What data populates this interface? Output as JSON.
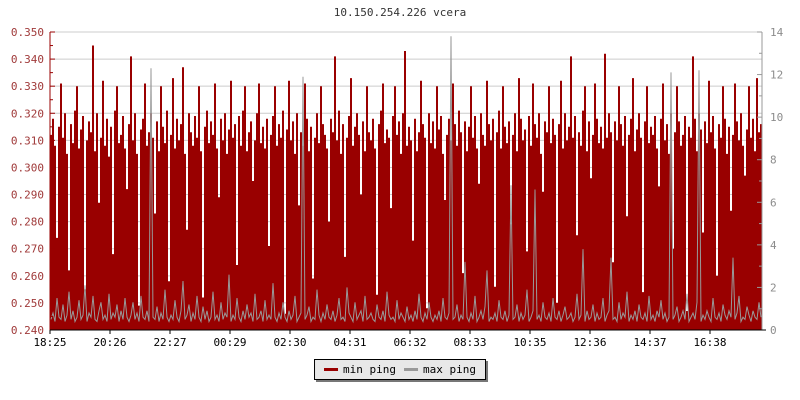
{
  "header": {
    "title": "10.150.254.226 vcera"
  },
  "colors": {
    "min_ping": "#990000",
    "max_ping": "#999999",
    "grid": "#cccccc",
    "left_axis": "#990000",
    "left_labels": "#a03a3a",
    "right_axis": "#999999",
    "right_labels": "#8c8c8c",
    "bottom_axis": "#000000",
    "x_labels": "#000000",
    "title": "#333333",
    "legend_bg": "#e8e8e8"
  },
  "legend": {
    "items": [
      "min ping",
      "max ping"
    ]
  },
  "chart_data": {
    "type": "line",
    "title": "10.150.254.226 vcera",
    "xlabel": "",
    "ylabel": "",
    "grid": true,
    "legend_position": "bottom-center",
    "x_tick_labels": [
      "18:25",
      "20:26",
      "22:27",
      "00:29",
      "02:30",
      "04:31",
      "06:32",
      "08:33",
      "10:35",
      "12:36",
      "14:37",
      "16:38"
    ],
    "left_axis": {
      "min": 0.24,
      "max": 0.35,
      "tick_step": 0.01,
      "minor_step": 0.005,
      "tick_labels": [
        "0.240",
        "0.250",
        "0.260",
        "0.270",
        "0.280",
        "0.290",
        "0.300",
        "0.310",
        "0.320",
        "0.330",
        "0.340",
        "0.350"
      ]
    },
    "right_axis": {
      "min": 0,
      "max": 14,
      "tick_step": 2,
      "minor_step": 1,
      "tick_labels": [
        "0",
        "2",
        "4",
        "6",
        "8",
        "10",
        "12",
        "14"
      ]
    },
    "series": [
      {
        "name": "min ping",
        "axis": "left",
        "style": "filled-bars",
        "color": "#990000",
        "values": [
          0.312,
          0.318,
          0.308,
          0.274,
          0.315,
          0.331,
          0.311,
          0.32,
          0.305,
          0.262,
          0.316,
          0.309,
          0.321,
          0.33,
          0.307,
          0.314,
          0.319,
          0.255,
          0.31,
          0.317,
          0.313,
          0.345,
          0.306,
          0.32,
          0.287,
          0.311,
          0.332,
          0.308,
          0.318,
          0.304,
          0.315,
          0.268,
          0.321,
          0.33,
          0.309,
          0.312,
          0.319,
          0.307,
          0.292,
          0.316,
          0.341,
          0.31,
          0.32,
          0.305,
          0.249,
          0.314,
          0.318,
          0.331,
          0.308,
          0.313,
          0.32,
          0.311,
          0.283,
          0.317,
          0.306,
          0.33,
          0.315,
          0.309,
          0.321,
          0.258,
          0.312,
          0.333,
          0.307,
          0.318,
          0.31,
          0.316,
          0.337,
          0.305,
          0.277,
          0.32,
          0.313,
          0.308,
          0.319,
          0.311,
          0.33,
          0.306,
          0.252,
          0.315,
          0.321,
          0.309,
          0.317,
          0.312,
          0.331,
          0.307,
          0.289,
          0.318,
          0.31,
          0.32,
          0.305,
          0.314,
          0.332,
          0.311,
          0.316,
          0.264,
          0.319,
          0.308,
          0.321,
          0.33,
          0.306,
          0.313,
          0.317,
          0.295,
          0.31,
          0.32,
          0.331,
          0.309,
          0.315,
          0.307,
          0.318,
          0.271,
          0.312,
          0.319,
          0.33,
          0.308,
          0.316,
          0.311,
          0.321,
          0.246,
          0.314,
          0.332,
          0.31,
          0.317,
          0.305,
          0.32,
          0.286,
          0.313,
          0.308,
          0.331,
          0.318,
          0.306,
          0.315,
          0.259,
          0.311,
          0.32,
          0.309,
          0.33,
          0.316,
          0.312,
          0.307,
          0.28,
          0.318,
          0.313,
          0.341,
          0.31,
          0.321,
          0.305,
          0.316,
          0.267,
          0.311,
          0.319,
          0.333,
          0.308,
          0.315,
          0.32,
          0.312,
          0.29,
          0.317,
          0.306,
          0.33,
          0.313,
          0.31,
          0.318,
          0.307,
          0.253,
          0.316,
          0.321,
          0.331,
          0.309,
          0.314,
          0.311,
          0.285,
          0.319,
          0.33,
          0.312,
          0.317,
          0.305,
          0.32,
          0.343,
          0.308,
          0.315,
          0.31,
          0.273,
          0.318,
          0.306,
          0.313,
          0.332,
          0.316,
          0.311,
          0.248,
          0.32,
          0.309,
          0.317,
          0.307,
          0.33,
          0.314,
          0.319,
          0.305,
          0.288,
          0.312,
          0.318,
          0.31,
          0.331,
          0.316,
          0.308,
          0.321,
          0.313,
          0.261,
          0.317,
          0.306,
          0.315,
          0.33,
          0.311,
          0.319,
          0.307,
          0.294,
          0.32,
          0.312,
          0.308,
          0.332,
          0.316,
          0.31,
          0.318,
          0.256,
          0.313,
          0.321,
          0.307,
          0.33,
          0.315,
          0.309,
          0.317,
          0.279,
          0.312,
          0.32,
          0.306,
          0.333,
          0.318,
          0.31,
          0.314,
          0.269,
          0.319,
          0.308,
          0.331,
          0.316,
          0.311,
          0.32,
          0.305,
          0.291,
          0.317,
          0.313,
          0.33,
          0.309,
          0.318,
          0.312,
          0.25,
          0.316,
          0.332,
          0.307,
          0.32,
          0.31,
          0.315,
          0.341,
          0.311,
          0.319,
          0.275,
          0.313,
          0.308,
          0.321,
          0.33,
          0.306,
          0.317,
          0.296,
          0.312,
          0.331,
          0.318,
          0.309,
          0.315,
          0.307,
          0.342,
          0.311,
          0.32,
          0.313,
          0.265,
          0.317,
          0.31,
          0.33,
          0.316,
          0.308,
          0.319,
          0.282,
          0.312,
          0.318,
          0.333,
          0.306,
          0.314,
          0.32,
          0.311,
          0.254,
          0.317,
          0.33,
          0.309,
          0.315,
          0.312,
          0.319,
          0.307,
          0.293,
          0.318,
          0.331,
          0.31,
          0.316,
          0.305,
          0.32,
          0.27,
          0.313,
          0.33,
          0.317,
          0.308,
          0.312,
          0.319,
          0.247,
          0.315,
          0.311,
          0.341,
          0.318,
          0.306,
          0.32,
          0.314,
          0.276,
          0.317,
          0.309,
          0.332,
          0.313,
          0.319,
          0.307,
          0.26,
          0.316,
          0.311,
          0.33,
          0.318,
          0.305,
          0.315,
          0.284,
          0.312,
          0.331,
          0.317,
          0.31,
          0.32,
          0.308,
          0.297,
          0.314,
          0.33,
          0.311,
          0.318,
          0.306,
          0.333,
          0.313,
          0.316
        ]
      },
      {
        "name": "max ping",
        "axis": "right",
        "style": "line",
        "color": "#999999",
        "values": [
          0.5,
          0.8,
          0.4,
          1.5,
          0.6,
          0.5,
          1.2,
          0.4,
          0.7,
          1.8,
          0.5,
          0.9,
          0.4,
          0.6,
          1.4,
          0.5,
          0.7,
          2.1,
          0.4,
          0.8,
          0.6,
          1.6,
          0.5,
          0.4,
          0.9,
          1.3,
          0.5,
          0.7,
          0.4,
          1.7,
          0.5,
          0.8,
          0.6,
          1.2,
          0.4,
          0.9,
          0.5,
          1.5,
          0.6,
          0.4,
          0.7,
          1.3,
          0.5,
          0.8,
          0.4,
          1.6,
          0.6,
          0.5,
          0.9,
          0.4,
          12.3,
          0.6,
          0.5,
          1.1,
          0.4,
          0.8,
          0.5,
          1.9,
          0.6,
          0.4,
          0.7,
          0.5,
          1.4,
          0.6,
          0.4,
          0.9,
          2.3,
          0.5,
          0.7,
          1.2,
          0.4,
          0.8,
          0.5,
          1.6,
          0.6,
          0.4,
          1.1,
          0.5,
          0.9,
          0.4,
          0.6,
          1.8,
          0.5,
          0.7,
          0.4,
          1.3,
          0.5,
          0.8,
          0.6,
          2.6,
          0.4,
          0.7,
          0.5,
          1.5,
          0.6,
          0.4,
          0.9,
          0.5,
          1.2,
          0.6,
          0.8,
          0.4,
          1.7,
          0.5,
          0.6,
          0.9,
          0.4,
          1.4,
          0.5,
          0.7,
          0.5,
          2.2,
          0.6,
          0.4,
          0.8,
          0.5,
          1.3,
          0.6,
          0.4,
          0.9,
          0.5,
          0.7,
          1.6,
          0.4,
          0.6,
          0.8,
          11.9,
          0.5,
          0.7,
          1.1,
          0.4,
          0.6,
          0.5,
          1.9,
          0.7,
          0.4,
          0.8,
          0.5,
          1.2,
          0.6,
          0.5,
          0.9,
          0.4,
          0.7,
          1.5,
          0.5,
          0.6,
          0.4,
          2.0,
          0.8,
          0.6,
          0.4,
          1.3,
          0.5,
          0.7,
          0.9,
          0.4,
          1.6,
          0.5,
          0.6,
          0.8,
          0.5,
          0.4,
          1.2,
          0.6,
          0.5,
          0.9,
          0.4,
          1.8,
          0.7,
          0.5,
          0.6,
          0.4,
          1.4,
          0.5,
          0.8,
          0.6,
          0.4,
          1.1,
          0.5,
          0.7,
          0.4,
          0.9,
          0.5,
          1.7,
          0.6,
          0.4,
          0.8,
          0.5,
          1.3,
          0.6,
          0.4,
          0.7,
          0.5,
          0.9,
          0.4,
          1.5,
          0.6,
          0.5,
          0.8,
          13.8,
          0.5,
          0.6,
          1.2,
          0.4,
          0.7,
          0.5,
          3.2,
          0.6,
          0.4,
          0.8,
          0.5,
          1.6,
          0.4,
          0.6,
          0.9,
          0.5,
          1.1,
          2.8,
          0.4,
          0.6,
          0.5,
          0.8,
          0.4,
          1.4,
          0.6,
          0.5,
          0.9,
          0.4,
          0.7,
          6.8,
          0.5,
          0.6,
          1.2,
          0.4,
          0.8,
          0.5,
          0.7,
          1.9,
          0.4,
          0.6,
          0.9,
          6.6,
          0.5,
          0.7,
          0.4,
          1.3,
          0.6,
          0.5,
          0.8,
          0.4,
          1.5,
          0.6,
          0.5,
          0.9,
          0.4,
          0.7,
          1.1,
          0.5,
          0.6,
          0.8,
          0.4,
          0.6,
          1.7,
          0.5,
          0.7,
          3.8,
          0.4,
          0.9,
          0.5,
          0.6,
          1.2,
          0.4,
          0.8,
          0.5,
          0.6,
          1.5,
          0.4,
          0.7,
          0.9,
          3.4,
          0.5,
          0.6,
          0.4,
          1.3,
          0.5,
          0.8,
          0.6,
          1.8,
          0.4,
          0.7,
          0.5,
          0.9,
          0.4,
          1.2,
          0.6,
          0.5,
          0.8,
          0.4,
          1.6,
          0.5,
          0.7,
          0.4,
          0.9,
          0.6,
          1.4,
          0.5,
          0.8,
          0.4,
          0.6,
          12.1,
          0.5,
          0.7,
          1.1,
          0.4,
          0.6,
          0.9,
          0.5,
          1.7,
          0.4,
          0.6,
          0.8,
          0.5,
          1.3,
          12.2,
          0.4,
          0.7,
          0.5,
          0.9,
          0.6,
          0.4,
          1.5,
          0.6,
          0.5,
          0.8,
          0.4,
          1.2,
          0.7,
          0.5,
          0.9,
          0.6,
          3.4,
          0.5,
          0.8,
          1.6,
          0.4,
          0.6,
          0.5,
          1.1,
          0.7,
          0.4,
          0.9,
          0.6,
          0.5,
          1.3,
          0.6
        ]
      }
    ]
  }
}
